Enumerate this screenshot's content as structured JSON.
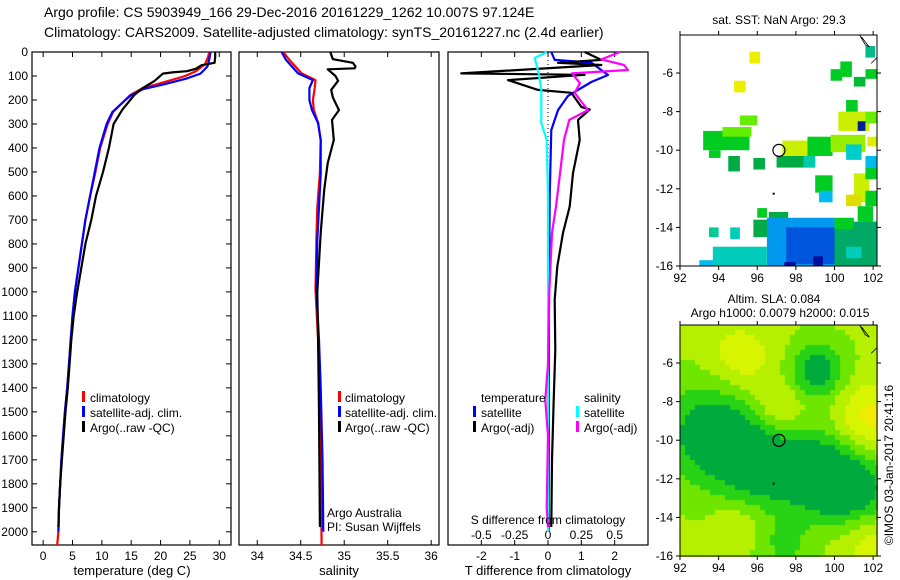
{
  "header": {
    "line1": "Argo profile: CS 5903949_166 29-Dec-2016 20161229_1262 10.007S 97.124E",
    "line2": "Climatology: CARS2009. Satellite-adjusted climatology: synTS_20161227.nc (2.4d earlier)"
  },
  "colors": {
    "climatology": "#ff0000",
    "satellite": "#0000ff",
    "argo": "#000000",
    "salinity_satellite": "#00ffff",
    "salinity_argo": "#ff00ff"
  },
  "chart_data": [
    {
      "type": "line",
      "name": "temperature-profile",
      "xlabel": "temperature (deg C)",
      "ylabel": "",
      "xlim": [
        -1.9,
        32
      ],
      "ylim": [
        2055,
        0
      ],
      "xticks": [
        "0",
        "5",
        "10",
        "15",
        "20",
        "25",
        "30"
      ],
      "yticks": [
        "0",
        "100",
        "200",
        "300",
        "400",
        "500",
        "600",
        "700",
        "800",
        "900",
        "1000",
        "1100",
        "1200",
        "1300",
        "1400",
        "1500",
        "1600",
        "1700",
        "1800",
        "1900",
        "2000"
      ],
      "legend": [
        "climatology",
        "satellite-adj. clim.",
        "Argo(..raw -QC)"
      ],
      "series": [
        {
          "name": "climatology",
          "color": "#ff0000",
          "points": [
            [
              28.3,
              0
            ],
            [
              28.1,
              20
            ],
            [
              27.6,
              50
            ],
            [
              26,
              80
            ],
            [
              24.2,
              100
            ],
            [
              20,
              130
            ],
            [
              17,
              150
            ],
            [
              14.8,
              180
            ],
            [
              14,
              200
            ],
            [
              11.9,
              250
            ],
            [
              11,
              300
            ],
            [
              9.7,
              400
            ],
            [
              8.9,
              500
            ],
            [
              8,
              600
            ],
            [
              7.2,
              700
            ],
            [
              6.6,
              800
            ],
            [
              6,
              900
            ],
            [
              5.4,
              1000
            ],
            [
              5,
              1100
            ],
            [
              4.7,
              1200
            ],
            [
              4.4,
              1300
            ],
            [
              4.1,
              1400
            ],
            [
              3.7,
              1500
            ],
            [
              3.4,
              1600
            ],
            [
              3.1,
              1700
            ],
            [
              2.9,
              1800
            ],
            [
              2.7,
              1900
            ],
            [
              2.6,
              2000
            ],
            [
              2.4,
              2055
            ]
          ]
        },
        {
          "name": "satellite-adj. clim.",
          "color": "#0000ff",
          "points": [
            [
              28.5,
              0
            ],
            [
              28.3,
              30
            ],
            [
              28,
              60
            ],
            [
              26.8,
              90
            ],
            [
              24.5,
              110
            ],
            [
              20.5,
              135
            ],
            [
              17,
              155
            ],
            [
              15,
              180
            ],
            [
              14,
              200
            ],
            [
              11.8,
              250
            ],
            [
              10.8,
              300
            ],
            [
              9.6,
              400
            ],
            [
              8.8,
              500
            ],
            [
              8,
              600
            ],
            [
              7.2,
              700
            ],
            [
              6.6,
              800
            ],
            [
              6,
              900
            ],
            [
              5.4,
              1000
            ],
            [
              5,
              1100
            ],
            [
              4.7,
              1200
            ],
            [
              4.4,
              1300
            ],
            [
              4.1,
              1400
            ],
            [
              3.7,
              1500
            ],
            [
              3.4,
              1600
            ],
            [
              3.1,
              1700
            ],
            [
              2.9,
              1800
            ],
            [
              2.7,
              1900
            ],
            [
              2.6,
              2000
            ]
          ]
        },
        {
          "name": "Argo(..raw -QC)",
          "color": "#000000",
          "points": [
            [
              29.3,
              0
            ],
            [
              29.3,
              20
            ],
            [
              29.2,
              45
            ],
            [
              27,
              55
            ],
            [
              26,
              70
            ],
            [
              24.5,
              80
            ],
            [
              22,
              85
            ],
            [
              20.4,
              90
            ],
            [
              19,
              120
            ],
            [
              17,
              150
            ],
            [
              15.5,
              180
            ],
            [
              14.5,
              210
            ],
            [
              13.5,
              240
            ],
            [
              12,
              300
            ],
            [
              11.2,
              400
            ],
            [
              10.2,
              500
            ],
            [
              9,
              600
            ],
            [
              8.2,
              700
            ],
            [
              7.2,
              800
            ],
            [
              6.5,
              900
            ],
            [
              5.8,
              1000
            ],
            [
              5.2,
              1100
            ],
            [
              4.8,
              1200
            ],
            [
              4.5,
              1300
            ],
            [
              4.2,
              1400
            ],
            [
              3.8,
              1500
            ],
            [
              3.5,
              1600
            ],
            [
              3.2,
              1700
            ],
            [
              2.9,
              1800
            ],
            [
              2.7,
              1900
            ],
            [
              2.6,
              1980
            ]
          ]
        }
      ]
    },
    {
      "type": "line",
      "name": "salinity-profile",
      "xlabel": "salinity",
      "xlim": [
        33.79,
        36.09
      ],
      "ylim": [
        2055,
        0
      ],
      "xticks": [
        "34",
        "34.5",
        "35",
        "35.5",
        "36"
      ],
      "legend": [
        "climatology",
        "satellite-adj. clim.",
        "Argo(..raw -QC)"
      ],
      "annotation": [
        "Argo Australia",
        "PI: Susan Wijffels"
      ],
      "series": [
        {
          "name": "climatology",
          "color": "#ff0000",
          "points": [
            [
              34.3,
              0
            ],
            [
              34.37,
              33
            ],
            [
              34.51,
              89
            ],
            [
              34.67,
              117
            ],
            [
              34.66,
              150
            ],
            [
              34.64,
              200
            ],
            [
              34.65,
              242
            ],
            [
              34.7,
              296
            ],
            [
              34.73,
              367
            ],
            [
              34.72,
              506
            ],
            [
              34.69,
              646
            ],
            [
              34.68,
              783
            ],
            [
              34.67,
              992
            ],
            [
              34.7,
              1200
            ],
            [
              34.72,
              1400
            ],
            [
              34.73,
              1700
            ],
            [
              34.74,
              2055
            ]
          ]
        },
        {
          "name": "satellite-adj. clim.",
          "color": "#0000ff",
          "points": [
            [
              34.28,
              0
            ],
            [
              34.33,
              33
            ],
            [
              34.47,
              89
            ],
            [
              34.64,
              117
            ],
            [
              34.6,
              150
            ],
            [
              34.6,
              200
            ],
            [
              34.63,
              242
            ],
            [
              34.7,
              296
            ],
            [
              34.73,
              367
            ],
            [
              34.73,
              506
            ],
            [
              34.71,
              646
            ],
            [
              34.69,
              783
            ],
            [
              34.68,
              992
            ],
            [
              34.71,
              1200
            ],
            [
              34.73,
              1400
            ],
            [
              34.75,
              1700
            ],
            [
              34.76,
              2000
            ]
          ]
        },
        {
          "name": "Argo(..raw -QC)",
          "color": "#000000",
          "points": [
            [
              34.84,
              0
            ],
            [
              34.87,
              30
            ],
            [
              35.1,
              45
            ],
            [
              35.13,
              60
            ],
            [
              35.12,
              68
            ],
            [
              34.81,
              72
            ],
            [
              34.9,
              100
            ],
            [
              34.93,
              120
            ],
            [
              34.85,
              158
            ],
            [
              34.87,
              190
            ],
            [
              34.94,
              242
            ],
            [
              34.86,
              283
            ],
            [
              34.88,
              367
            ],
            [
              34.81,
              463
            ],
            [
              34.77,
              575
            ],
            [
              34.73,
              754
            ],
            [
              34.69,
              1000
            ],
            [
              34.7,
              1200
            ],
            [
              34.71,
              1500
            ],
            [
              34.72,
              1980
            ]
          ]
        }
      ]
    },
    {
      "type": "line",
      "name": "difference-profile",
      "xlabel": "T difference from climatology",
      "xlabel2": "S difference from climatology",
      "xlim": [
        -3.0,
        3.0
      ],
      "xlim_salinity": [
        -0.75,
        0.75
      ],
      "ylim": [
        2055,
        0
      ],
      "xticks": [
        "-2",
        "-1",
        "0",
        "1",
        "2"
      ],
      "xticks_salinity": [
        "-0.5",
        "-0.25",
        "0",
        "0.25",
        "0.5"
      ],
      "legend": {
        "temperature_heading": "temperature",
        "salinity_heading": "salinity",
        "items": [
          "satellite",
          "Argo(-adj)",
          "satellite",
          "Argo(-adj)"
        ]
      },
      "series": [
        {
          "name": "temperature satellite",
          "color": "#0000ff",
          "units": "T",
          "points": [
            [
              0.1,
              0
            ],
            [
              0.2,
              33
            ],
            [
              1.3,
              44
            ],
            [
              1.8,
              96
            ],
            [
              1.3,
              125
            ],
            [
              0.6,
              183
            ],
            [
              0.3,
              242
            ],
            [
              0.1,
              325
            ],
            [
              0.05,
              600
            ],
            [
              0.03,
              1000
            ],
            [
              0.02,
              2000
            ]
          ]
        },
        {
          "name": "temperature Argo(-adj)",
          "color": "#000000",
          "units": "T",
          "points": [
            [
              1.1,
              0
            ],
            [
              1.6,
              33
            ],
            [
              0.3,
              45
            ],
            [
              1.6,
              54
            ],
            [
              -2.6,
              89
            ],
            [
              1.1,
              95
            ],
            [
              -1.2,
              117
            ],
            [
              -0.3,
              158
            ],
            [
              0.7,
              170
            ],
            [
              1.0,
              229
            ],
            [
              1.25,
              240
            ],
            [
              0.9,
              283
            ],
            [
              0.95,
              367
            ],
            [
              0.75,
              505
            ],
            [
              0.65,
              644
            ],
            [
              0.45,
              754
            ],
            [
              0.28,
              894
            ],
            [
              0.2,
              1033
            ],
            [
              0.22,
              1242
            ],
            [
              0.17,
              1450
            ],
            [
              0.12,
              1700
            ],
            [
              0.1,
              1980
            ]
          ]
        },
        {
          "name": "salinity satellite",
          "color": "#00ffff",
          "units": "S",
          "points": [
            [
              -0.01,
              0
            ],
            [
              -0.1,
              25
            ],
            [
              -0.07,
              89
            ],
            [
              -0.05,
              158
            ],
            [
              -0.05,
              296
            ],
            [
              -0.01,
              367
            ],
            [
              0,
              600
            ],
            [
              0,
              2000
            ]
          ]
        },
        {
          "name": "salinity Argo(-adj)",
          "color": "#ff00ff",
          "units": "S",
          "points": [
            [
              0.54,
              0
            ],
            [
              0.4,
              31
            ],
            [
              0.57,
              54
            ],
            [
              0.6,
              75
            ],
            [
              0.18,
              89
            ],
            [
              0.24,
              130
            ],
            [
              0.2,
              170
            ],
            [
              0.24,
              200
            ],
            [
              0.3,
              242
            ],
            [
              0.16,
              283
            ],
            [
              0.12,
              367
            ],
            [
              0.09,
              506
            ],
            [
              0.06,
              644
            ],
            [
              0.03,
              754
            ],
            [
              0.01,
              1000
            ],
            [
              0,
              1300
            ],
            [
              -0.02,
              1450
            ],
            [
              0,
              1600
            ],
            [
              -0.01,
              1900
            ],
            [
              0,
              1980
            ]
          ]
        }
      ]
    },
    {
      "type": "heatmap",
      "name": "sst-map",
      "title": "sat. SST: NaN Argo: 29.3",
      "xlim": [
        92,
        102.2
      ],
      "ylim": [
        -16,
        -4
      ],
      "xticks": [
        "92",
        "94",
        "96",
        "98",
        "100",
        "102"
      ],
      "yticks": [
        "-6",
        "-8",
        "-10",
        "-12",
        "-14",
        "-16"
      ],
      "profile_location": [
        97.124,
        -10.007
      ]
    },
    {
      "type": "heatmap",
      "name": "sla-map",
      "title": "Altim. SLA: 0.084",
      "subtitle": "Argo h1000: 0.0079 h2000: 0.015",
      "xlim": [
        92,
        102.2
      ],
      "ylim": [
        -16,
        -4
      ],
      "xticks": [
        "92",
        "94",
        "96",
        "98",
        "100",
        "102"
      ],
      "yticks": [
        "-6",
        "-8",
        "-10",
        "-12",
        "-14",
        "-16"
      ],
      "profile_location": [
        97.124,
        -10.007
      ]
    }
  ],
  "footer": {
    "credit": "©IMOS 03-Jan-2017 20:41:16"
  }
}
